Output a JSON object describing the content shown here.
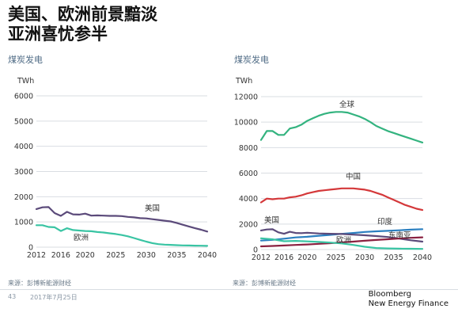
{
  "title_line1": "美国、欧洲前景黯淡",
  "title_line2": "亚洲喜忧参半",
  "watermark": "",
  "footer": {
    "source_left": "来源：彭博新能源财经",
    "source_right": "来源：彭博新能源财经",
    "page": "43",
    "date": "2017年7月25日",
    "brand_line1": "Bloomberg",
    "brand_line2": "New Energy Finance"
  },
  "colors": {
    "panel_title": "#4f6b85",
    "grid": "#d9dde2",
    "navy": "#5b4a7a",
    "teal": "#39c4a3",
    "green": "#33b37f",
    "red": "#d4383a",
    "blue": "#2a7fc0",
    "maroon": "#8a2040"
  },
  "chart_data": [
    {
      "type": "line",
      "title": "煤炭发电",
      "ylabel": "TWh",
      "ylim": [
        0,
        6000
      ],
      "yticks": [
        0,
        1000,
        2000,
        3000,
        4000,
        5000,
        6000
      ],
      "xlim": [
        2012,
        2040
      ],
      "xticks": [
        2012,
        2016,
        2020,
        2025,
        2030,
        2035,
        2040
      ],
      "grid": true,
      "series": [
        {
          "name": "美国",
          "color": "#5b4a7a",
          "x": [
            2012,
            2013,
            2014,
            2015,
            2016,
            2017,
            2018,
            2019,
            2020,
            2021,
            2022,
            2023,
            2024,
            2025,
            2026,
            2027,
            2028,
            2029,
            2030,
            2031,
            2032,
            2033,
            2034,
            2035,
            2036,
            2037,
            2038,
            2039,
            2040
          ],
          "values": [
            1510,
            1580,
            1590,
            1350,
            1240,
            1400,
            1300,
            1290,
            1330,
            1250,
            1260,
            1250,
            1240,
            1240,
            1230,
            1200,
            1180,
            1150,
            1140,
            1110,
            1080,
            1050,
            1020,
            960,
            890,
            820,
            750,
            690,
            620
          ]
        },
        {
          "name": "欧洲",
          "color": "#39c4a3",
          "x": [
            2012,
            2013,
            2014,
            2015,
            2016,
            2017,
            2018,
            2019,
            2020,
            2021,
            2022,
            2023,
            2024,
            2025,
            2026,
            2027,
            2028,
            2029,
            2030,
            2031,
            2032,
            2033,
            2034,
            2035,
            2036,
            2037,
            2038,
            2039,
            2040
          ],
          "values": [
            870,
            870,
            800,
            790,
            640,
            750,
            680,
            660,
            640,
            630,
            600,
            580,
            550,
            520,
            480,
            430,
            360,
            290,
            220,
            160,
            120,
            100,
            90,
            80,
            70,
            65,
            60,
            55,
            50
          ]
        }
      ]
    },
    {
      "type": "line",
      "title": "煤炭发电",
      "ylabel": "TWh",
      "ylim": [
        0,
        12000
      ],
      "yticks": [
        0,
        2000,
        4000,
        6000,
        8000,
        10000,
        12000
      ],
      "xlim": [
        2012,
        2040
      ],
      "xticks": [
        2012,
        2016,
        2020,
        2025,
        2030,
        2035,
        2040
      ],
      "grid": true,
      "series": [
        {
          "name": "全球",
          "color": "#33b37f",
          "x": [
            2012,
            2013,
            2014,
            2015,
            2016,
            2017,
            2018,
            2019,
            2020,
            2021,
            2022,
            2023,
            2024,
            2025,
            2026,
            2027,
            2028,
            2029,
            2030,
            2031,
            2032,
            2033,
            2034,
            2035,
            2036,
            2037,
            2038,
            2039,
            2040
          ],
          "values": [
            8600,
            9300,
            9300,
            9000,
            9000,
            9500,
            9600,
            9800,
            10100,
            10300,
            10500,
            10650,
            10750,
            10800,
            10800,
            10750,
            10600,
            10450,
            10250,
            10000,
            9700,
            9500,
            9300,
            9150,
            9000,
            8850,
            8700,
            8550,
            8400
          ]
        },
        {
          "name": "中国",
          "color": "#d4383a",
          "x": [
            2012,
            2013,
            2014,
            2015,
            2016,
            2017,
            2018,
            2019,
            2020,
            2021,
            2022,
            2023,
            2024,
            2025,
            2026,
            2027,
            2028,
            2029,
            2030,
            2031,
            2032,
            2033,
            2034,
            2035,
            2036,
            2037,
            2038,
            2039,
            2040
          ],
          "values": [
            3700,
            4000,
            3950,
            4000,
            4000,
            4100,
            4150,
            4250,
            4400,
            4500,
            4600,
            4650,
            4700,
            4750,
            4800,
            4800,
            4800,
            4750,
            4700,
            4600,
            4450,
            4300,
            4100,
            3900,
            3700,
            3500,
            3350,
            3200,
            3100
          ]
        },
        {
          "name": "印度",
          "color": "#2a7fc0",
          "x": [
            2012,
            2014,
            2016,
            2018,
            2020,
            2022,
            2024,
            2026,
            2028,
            2030,
            2032,
            2034,
            2036,
            2038,
            2040
          ],
          "values": [
            700,
            760,
            850,
            950,
            1000,
            1080,
            1150,
            1230,
            1300,
            1380,
            1430,
            1470,
            1510,
            1560,
            1600
          ]
        },
        {
          "name": "美国",
          "color": "#5b4a7a",
          "x": [
            2012,
            2013,
            2014,
            2015,
            2016,
            2017,
            2018,
            2019,
            2020,
            2022,
            2024,
            2026,
            2028,
            2030,
            2032,
            2034,
            2036,
            2038,
            2040
          ],
          "values": [
            1500,
            1570,
            1590,
            1350,
            1240,
            1390,
            1300,
            1290,
            1320,
            1260,
            1240,
            1220,
            1170,
            1120,
            1060,
            980,
            860,
            730,
            620
          ]
        },
        {
          "name": "东南亚",
          "color": "#8a2040",
          "x": [
            2012,
            2014,
            2016,
            2018,
            2020,
            2022,
            2024,
            2026,
            2028,
            2030,
            2032,
            2034,
            2036,
            2038,
            2040
          ],
          "values": [
            250,
            280,
            320,
            360,
            400,
            450,
            500,
            560,
            620,
            690,
            750,
            810,
            870,
            920,
            960
          ]
        },
        {
          "name": "欧洲",
          "color": "#39c4a3",
          "x": [
            2012,
            2014,
            2016,
            2018,
            2020,
            2022,
            2024,
            2026,
            2028,
            2030,
            2032,
            2034,
            2036,
            2038,
            2040
          ],
          "values": [
            880,
            800,
            650,
            680,
            640,
            600,
            550,
            480,
            360,
            220,
            120,
            90,
            70,
            60,
            50
          ]
        }
      ]
    }
  ]
}
